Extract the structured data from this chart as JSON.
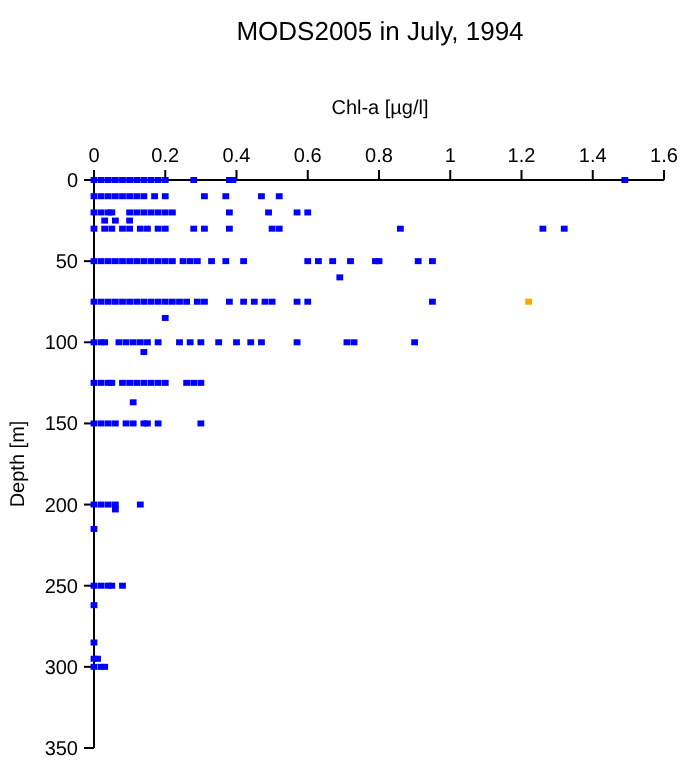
{
  "chart_data": {
    "type": "scatter",
    "title": "MODS2005 in July, 1994",
    "xlabel": "Chl-a [µg/l]",
    "ylabel": "Depth [m]",
    "xlim": [
      0,
      1.6
    ],
    "xticks": [
      0,
      0.2,
      0.4,
      0.6,
      0.8,
      1,
      1.2,
      1.4,
      1.6
    ],
    "ylim": [
      350,
      0
    ],
    "yticks": [
      0,
      50,
      100,
      150,
      200,
      250,
      300,
      350
    ],
    "marker": "square",
    "grid": false,
    "series": [
      {
        "color": "#0000ff",
        "x": [
          0,
          0.02,
          0.04,
          0.06,
          0.08,
          0.1,
          0.12,
          0.14,
          0.16,
          0.18,
          0.2,
          0.28,
          0.38,
          0.39,
          1.49,
          0,
          0.02,
          0.04,
          0.06,
          0.08,
          0.1,
          0.12,
          0.14,
          0.17,
          0.2,
          0.31,
          0.37,
          0.47,
          0.52,
          0,
          0.02,
          0.04,
          0.05,
          0.1,
          0.12,
          0.14,
          0.16,
          0.18,
          0.2,
          0.22,
          0.38,
          0.49,
          0.57,
          0.6,
          0.03,
          0.06,
          0.1,
          0,
          0.03,
          0.05,
          0.08,
          0.1,
          0.13,
          0.15,
          0.18,
          0.2,
          0.28,
          0.31,
          0.38,
          0.5,
          0.52,
          0.86,
          1.26,
          1.32,
          0,
          0.02,
          0.04,
          0.06,
          0.08,
          0.1,
          0.12,
          0.14,
          0.16,
          0.18,
          0.2,
          0.22,
          0.25,
          0.27,
          0.29,
          0.33,
          0.37,
          0.42,
          0.6,
          0.63,
          0.67,
          0.72,
          0.79,
          0.8,
          0.91,
          0.95,
          0.69,
          0,
          0.02,
          0.04,
          0.06,
          0.08,
          0.1,
          0.12,
          0.14,
          0.16,
          0.18,
          0.2,
          0.22,
          0.24,
          0.26,
          0.29,
          0.31,
          0.38,
          0.42,
          0.45,
          0.48,
          0.5,
          0.57,
          0.6,
          0.95,
          0.2,
          0,
          0.02,
          0.03,
          0.07,
          0.09,
          0.11,
          0.13,
          0.15,
          0.18,
          0.24,
          0.27,
          0.3,
          0.35,
          0.4,
          0.44,
          0.47,
          0.57,
          0.71,
          0.73,
          0.9,
          0.14,
          0,
          0.02,
          0.04,
          0.05,
          0.08,
          0.1,
          0.12,
          0.14,
          0.16,
          0.18,
          0.2,
          0.26,
          0.28,
          0.3,
          0.11,
          0,
          0.02,
          0.04,
          0.06,
          0.09,
          0.11,
          0.14,
          0.15,
          0.18,
          0.3,
          0,
          0.02,
          0.04,
          0.06,
          0.13,
          0.06,
          0,
          0,
          0.02,
          0.04,
          0.05,
          0.08,
          0,
          0,
          0,
          0.01,
          0,
          0.02,
          0.03
        ],
        "values": [
          0,
          0,
          0,
          0,
          0,
          0,
          0,
          0,
          0,
          0,
          0,
          0,
          0,
          0,
          0,
          10,
          10,
          10,
          10,
          10,
          10,
          10,
          10,
          10,
          10,
          10,
          10,
          10,
          10,
          20,
          20,
          20,
          20,
          20,
          20,
          20,
          20,
          20,
          20,
          20,
          20,
          20,
          20,
          20,
          25,
          25,
          25,
          30,
          30,
          30,
          30,
          30,
          30,
          30,
          30,
          30,
          30,
          30,
          30,
          30,
          30,
          30,
          30,
          30,
          50,
          50,
          50,
          50,
          50,
          50,
          50,
          50,
          50,
          50,
          50,
          50,
          50,
          50,
          50,
          50,
          50,
          50,
          50,
          50,
          50,
          50,
          50,
          50,
          50,
          50,
          60,
          75,
          75,
          75,
          75,
          75,
          75,
          75,
          75,
          75,
          75,
          75,
          75,
          75,
          75,
          75,
          75,
          75,
          75,
          75,
          75,
          75,
          75,
          75,
          75,
          85,
          100,
          100,
          100,
          100,
          100,
          100,
          100,
          100,
          100,
          100,
          100,
          100,
          100,
          100,
          100,
          100,
          100,
          100,
          100,
          100,
          106,
          125,
          125,
          125,
          125,
          125,
          125,
          125,
          125,
          125,
          125,
          125,
          125,
          125,
          125,
          137,
          150,
          150,
          150,
          150,
          150,
          150,
          150,
          150,
          150,
          150,
          200,
          200,
          200,
          200,
          200,
          203,
          215,
          250,
          250,
          250,
          250,
          250,
          262,
          285,
          295,
          295,
          300,
          300,
          300
        ]
      },
      {
        "color": "#ffa500",
        "x": [
          1.22
        ],
        "values": [
          75
        ]
      }
    ]
  }
}
